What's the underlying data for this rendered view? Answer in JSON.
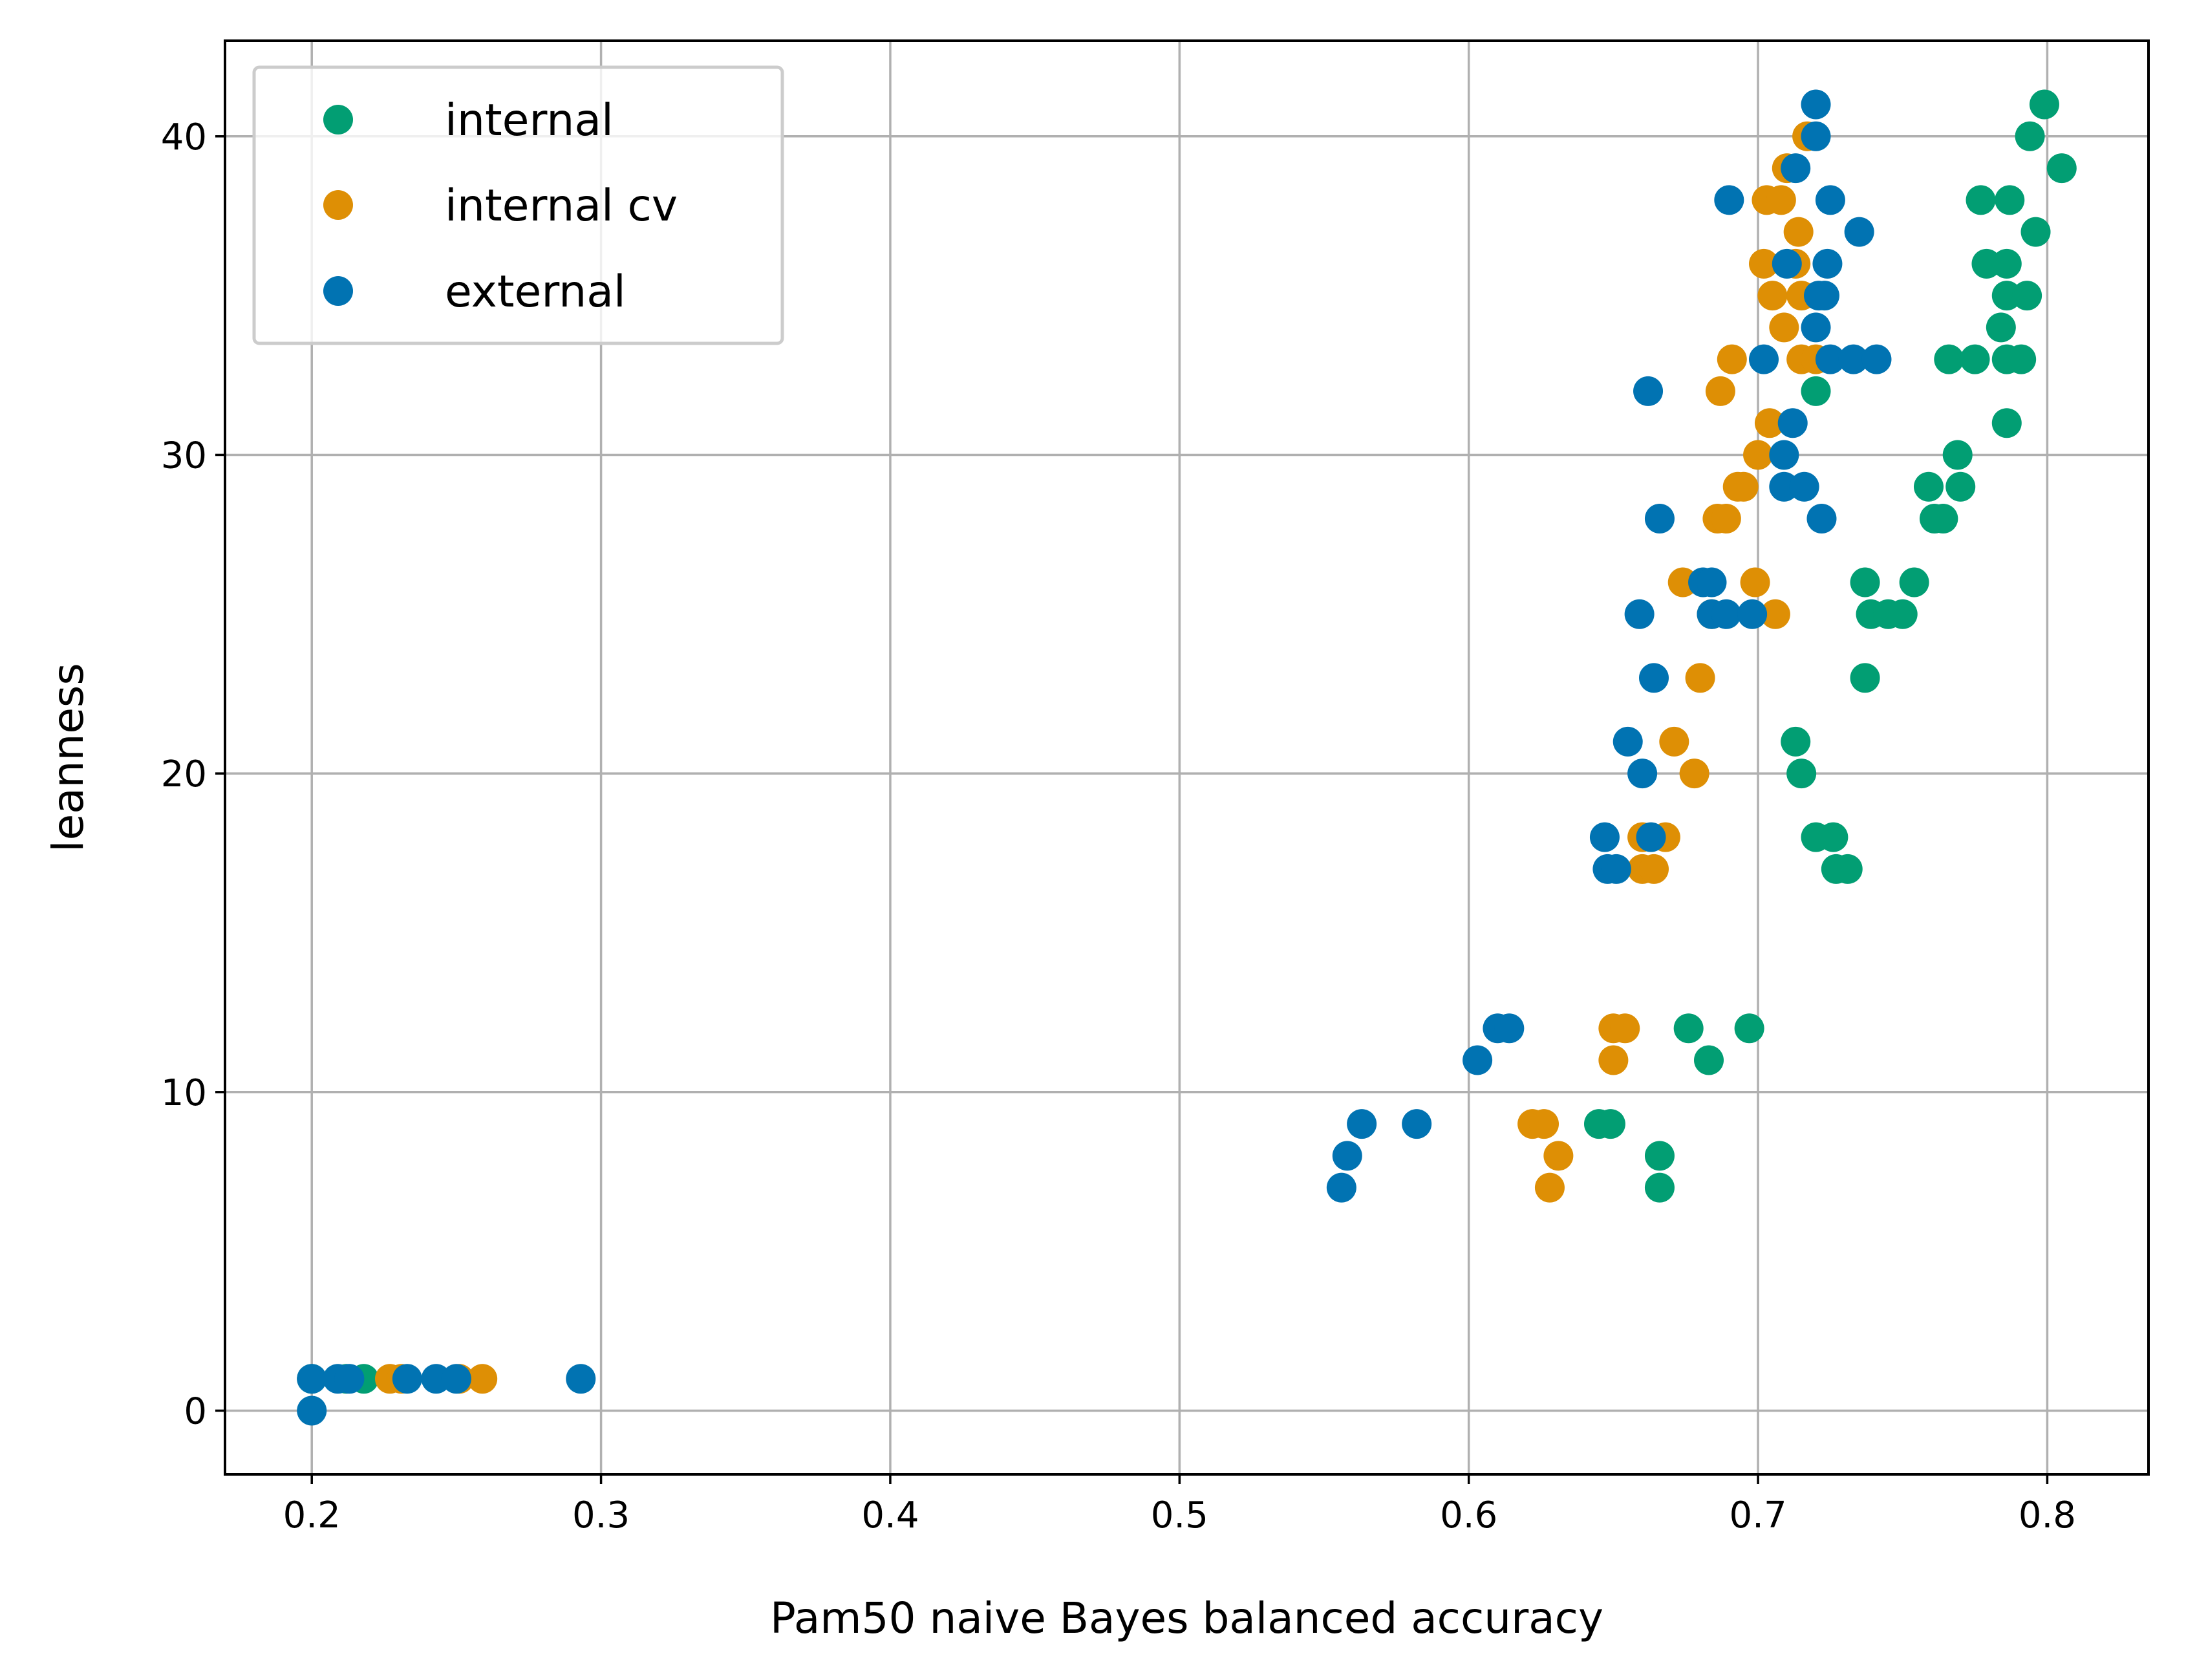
{
  "chart_data": {
    "type": "scatter",
    "title": "",
    "xlabel": "Pam50 naive Bayes balanced accuracy",
    "ylabel": "leanness",
    "xlim": [
      0.17,
      0.835
    ],
    "ylim": [
      -2,
      43
    ],
    "xticks": [
      0.2,
      0.3,
      0.4,
      0.5,
      0.6,
      0.7,
      0.8
    ],
    "xtick_labels": [
      "0.2",
      "0.3",
      "0.4",
      "0.5",
      "0.6",
      "0.7",
      "0.8"
    ],
    "yticks": [
      0,
      10,
      20,
      30,
      40
    ],
    "ytick_labels": [
      "0",
      "10",
      "20",
      "30",
      "40"
    ],
    "grid": true,
    "legend_position": "top-left",
    "series": [
      {
        "name": "internal",
        "color": "#029e73",
        "points": [
          [
            0.2,
            1
          ],
          [
            0.212,
            1
          ],
          [
            0.218,
            1
          ],
          [
            0.645,
            9
          ],
          [
            0.649,
            9
          ],
          [
            0.666,
            8
          ],
          [
            0.666,
            7
          ],
          [
            0.676,
            12
          ],
          [
            0.683,
            11
          ],
          [
            0.697,
            12
          ],
          [
            0.713,
            21
          ],
          [
            0.715,
            20
          ],
          [
            0.72,
            18
          ],
          [
            0.726,
            18
          ],
          [
            0.727,
            17
          ],
          [
            0.731,
            17
          ],
          [
            0.737,
            26
          ],
          [
            0.737,
            23
          ],
          [
            0.739,
            25
          ],
          [
            0.745,
            25
          ],
          [
            0.75,
            25
          ],
          [
            0.754,
            26
          ],
          [
            0.759,
            29
          ],
          [
            0.761,
            28
          ],
          [
            0.764,
            28
          ],
          [
            0.766,
            33
          ],
          [
            0.769,
            30
          ],
          [
            0.77,
            29
          ],
          [
            0.775,
            33
          ],
          [
            0.777,
            38
          ],
          [
            0.779,
            36
          ],
          [
            0.784,
            34
          ],
          [
            0.786,
            36
          ],
          [
            0.786,
            35
          ],
          [
            0.786,
            33
          ],
          [
            0.786,
            31
          ],
          [
            0.787,
            38
          ],
          [
            0.791,
            33
          ],
          [
            0.793,
            35
          ],
          [
            0.794,
            40
          ],
          [
            0.796,
            37
          ],
          [
            0.799,
            41
          ],
          [
            0.805,
            39
          ],
          [
            0.72,
            32
          ]
        ]
      },
      {
        "name": "internal cv",
        "color": "#de8f05",
        "points": [
          [
            0.227,
            1
          ],
          [
            0.231,
            1
          ],
          [
            0.251,
            1
          ],
          [
            0.259,
            1
          ],
          [
            0.622,
            9
          ],
          [
            0.626,
            9
          ],
          [
            0.628,
            7
          ],
          [
            0.631,
            8
          ],
          [
            0.65,
            12
          ],
          [
            0.65,
            11
          ],
          [
            0.654,
            12
          ],
          [
            0.66,
            18
          ],
          [
            0.66,
            17
          ],
          [
            0.664,
            17
          ],
          [
            0.668,
            18
          ],
          [
            0.671,
            21
          ],
          [
            0.678,
            20
          ],
          [
            0.68,
            23
          ],
          [
            0.674,
            26
          ],
          [
            0.684,
            25
          ],
          [
            0.686,
            28
          ],
          [
            0.687,
            32
          ],
          [
            0.689,
            28
          ],
          [
            0.691,
            33
          ],
          [
            0.693,
            29
          ],
          [
            0.695,
            29
          ],
          [
            0.699,
            26
          ],
          [
            0.7,
            30
          ],
          [
            0.702,
            36
          ],
          [
            0.703,
            38
          ],
          [
            0.704,
            31
          ],
          [
            0.705,
            35
          ],
          [
            0.706,
            25
          ],
          [
            0.708,
            38
          ],
          [
            0.709,
            34
          ],
          [
            0.71,
            39
          ],
          [
            0.713,
            36
          ],
          [
            0.714,
            37
          ],
          [
            0.715,
            35
          ],
          [
            0.715,
            33
          ],
          [
            0.717,
            40
          ],
          [
            0.72,
            33
          ]
        ]
      },
      {
        "name": "external",
        "color": "#0173b2",
        "points": [
          [
            0.2,
            1
          ],
          [
            0.2,
            0
          ],
          [
            0.209,
            1
          ],
          [
            0.213,
            1
          ],
          [
            0.233,
            1
          ],
          [
            0.243,
            1
          ],
          [
            0.25,
            1
          ],
          [
            0.293,
            1
          ],
          [
            0.556,
            7
          ],
          [
            0.558,
            8
          ],
          [
            0.563,
            9
          ],
          [
            0.582,
            9
          ],
          [
            0.603,
            11
          ],
          [
            0.61,
            12
          ],
          [
            0.614,
            12
          ],
          [
            0.647,
            18
          ],
          [
            0.648,
            17
          ],
          [
            0.651,
            17
          ],
          [
            0.655,
            21
          ],
          [
            0.659,
            25
          ],
          [
            0.66,
            20
          ],
          [
            0.662,
            32
          ],
          [
            0.663,
            18
          ],
          [
            0.664,
            23
          ],
          [
            0.666,
            28
          ],
          [
            0.681,
            26
          ],
          [
            0.684,
            26
          ],
          [
            0.684,
            25
          ],
          [
            0.689,
            25
          ],
          [
            0.69,
            38
          ],
          [
            0.698,
            25
          ],
          [
            0.702,
            33
          ],
          [
            0.709,
            29
          ],
          [
            0.709,
            30
          ],
          [
            0.71,
            36
          ],
          [
            0.712,
            31
          ],
          [
            0.713,
            39
          ],
          [
            0.716,
            29
          ],
          [
            0.72,
            41
          ],
          [
            0.72,
            40
          ],
          [
            0.72,
            34
          ],
          [
            0.721,
            35
          ],
          [
            0.722,
            28
          ],
          [
            0.723,
            35
          ],
          [
            0.724,
            36
          ],
          [
            0.725,
            33
          ],
          [
            0.725,
            38
          ],
          [
            0.733,
            33
          ],
          [
            0.735,
            37
          ],
          [
            0.741,
            33
          ]
        ]
      }
    ]
  }
}
